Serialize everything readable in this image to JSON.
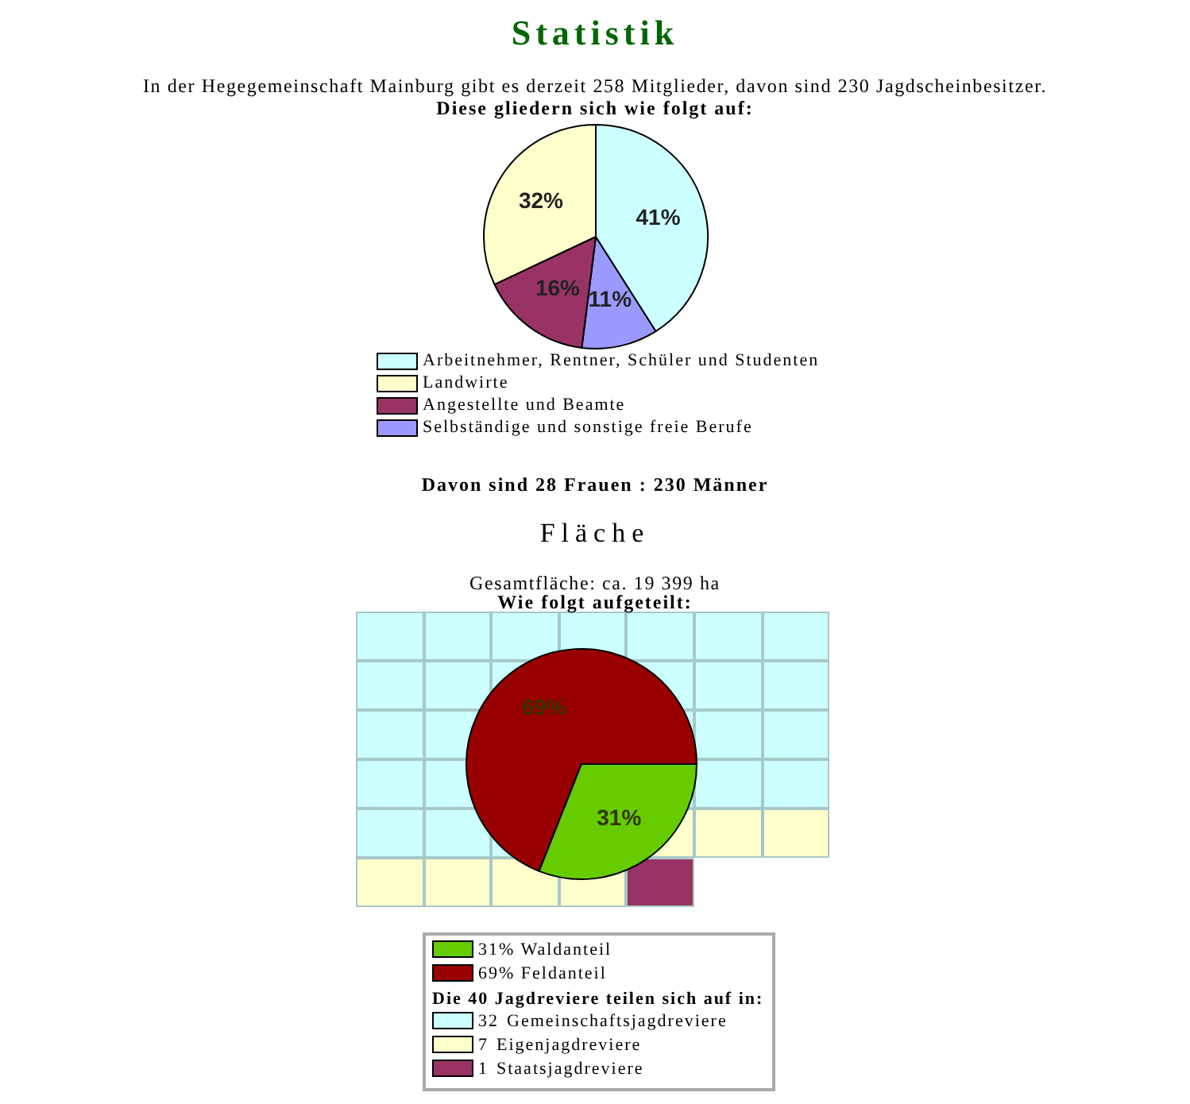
{
  "chart_data": [
    {
      "type": "pie",
      "title": "Statistik",
      "subtitle": "In der Hegegemeinschaft Mainburg gibt es derzeit 258 Mitglieder, davon sind 230 Jagdscheinbesitzer.",
      "annotations": [
        "Diese gliedern sich wie folgt auf:",
        "Davon sind 28 Frauen : 230 Männer"
      ],
      "categories": [
        "Arbeitnehmer, Rentner, Schüler und Studenten",
        "Landwirte",
        "Angestellte und Beamte",
        "Selbständige und sonstige freie Berufe"
      ],
      "values": [
        41,
        32,
        16,
        11
      ],
      "value_labels": [
        "41%",
        "32%",
        "16%",
        "11%"
      ],
      "colors": [
        "#ccffff",
        "#ffffcc",
        "#993366",
        "#9999ff"
      ],
      "legend": "bottom"
    },
    {
      "type": "pie",
      "title": "Fläche",
      "subtitle": "Gesamtfläche: ca. 19 399 ha",
      "annotations": [
        "Wie folgt aufgeteilt:"
      ],
      "categories": [
        "Waldanteil",
        "Feldanteil"
      ],
      "values": [
        31,
        69
      ],
      "value_labels": [
        "31%",
        "69%"
      ],
      "colors": [
        "#66cc00",
        "#990000"
      ],
      "legend": "bottom"
    },
    {
      "type": "other",
      "legend_title": "Die 40 Jagdreviere teilen sich auf in:",
      "categories": [
        "Gemeinschaftsjagdreviere",
        "Eigenjagdreviere",
        "Staatsjagdreviere"
      ],
      "values": [
        32,
        7,
        1
      ],
      "value_labels": [
        "32",
        "7",
        "1"
      ],
      "colors": [
        "#ccffff",
        "#ffffcc",
        "#993366"
      ]
    }
  ]
}
